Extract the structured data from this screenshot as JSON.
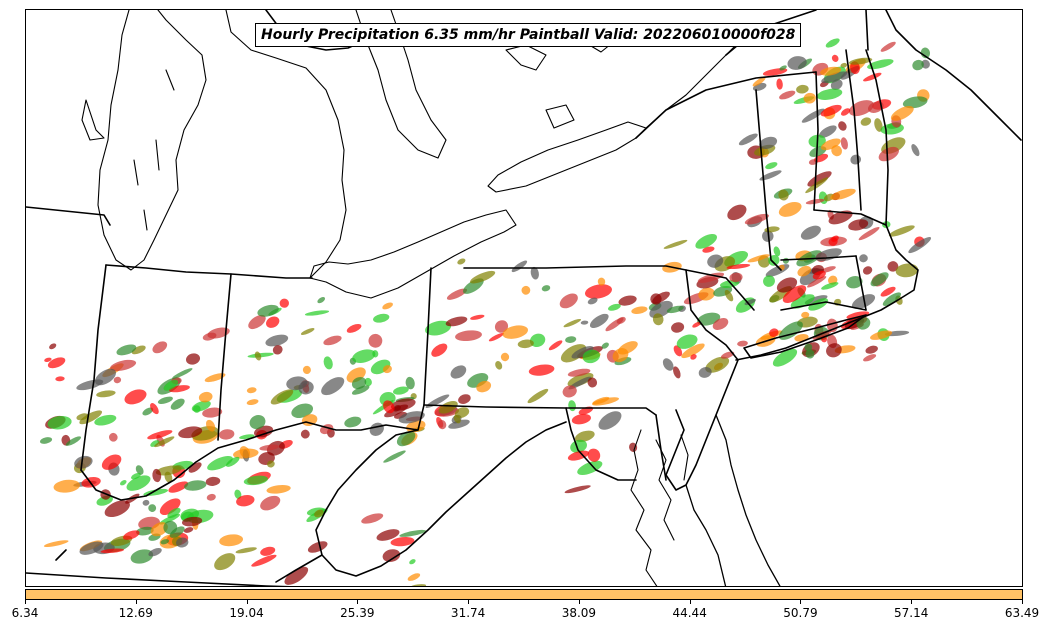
{
  "title": "Hourly Precipitation 6.35 mm/hr Paintball Valid: 202206010000f028",
  "colorbar": {
    "color": "#ffc266",
    "ticks": [
      "6.34",
      "12.69",
      "19.04",
      "25.39",
      "31.74",
      "38.09",
      "44.44",
      "50.79",
      "57.14",
      "63.49"
    ]
  },
  "member_colors": [
    "#8b0000",
    "#ff0000",
    "#ff8c00",
    "#808000",
    "#2e8b2e",
    "#22cc22",
    "#555555",
    "#cc3333"
  ]
}
